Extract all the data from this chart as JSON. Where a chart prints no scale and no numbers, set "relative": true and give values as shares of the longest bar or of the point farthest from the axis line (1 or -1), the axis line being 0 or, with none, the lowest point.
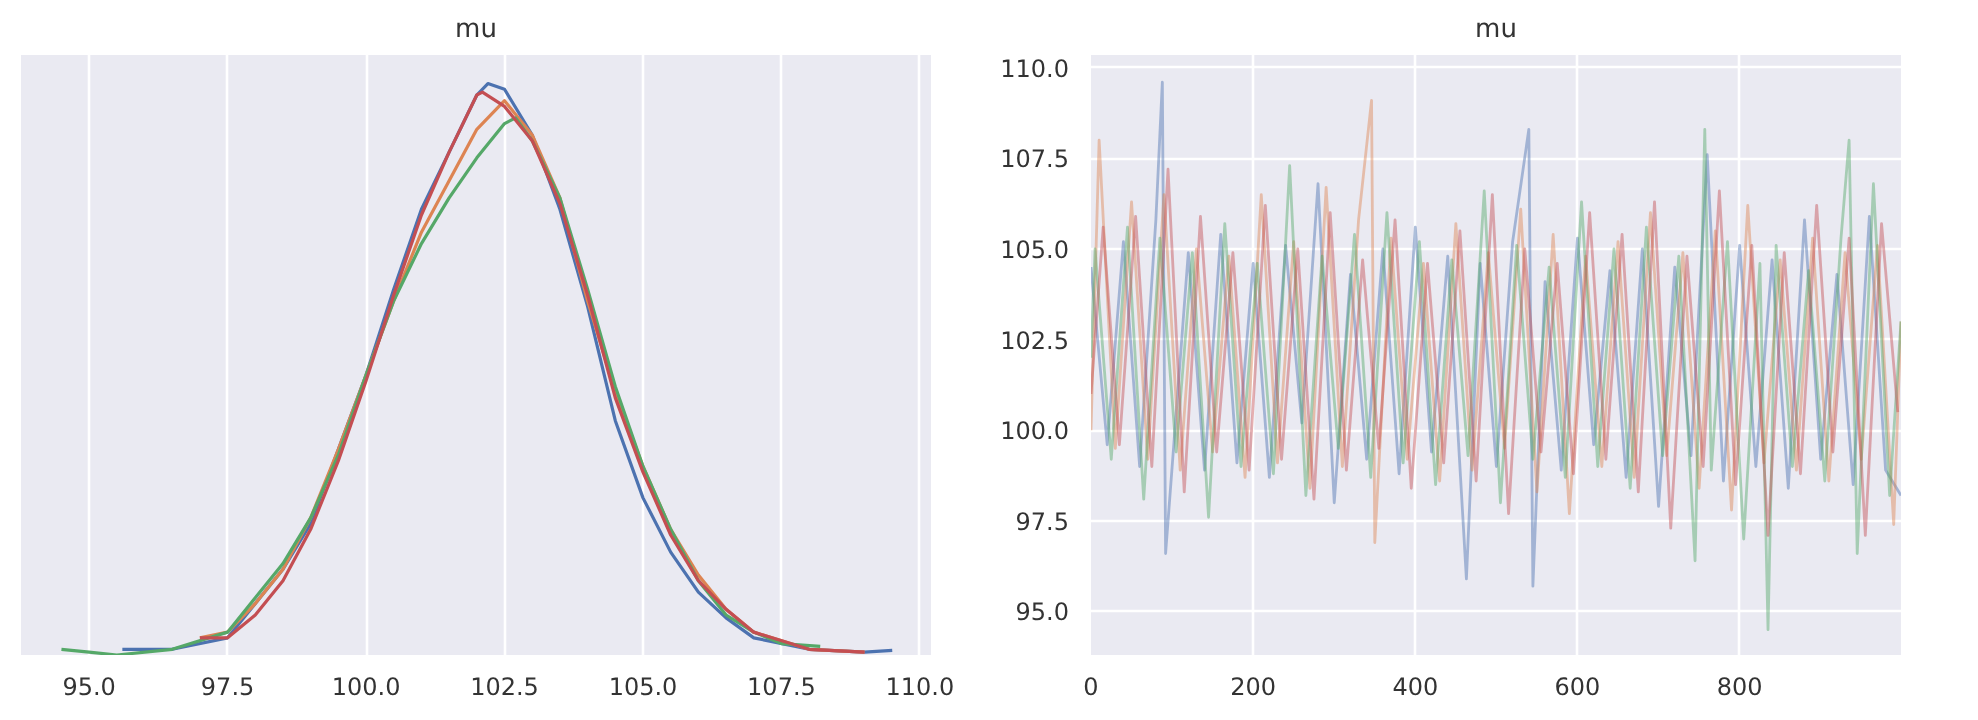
{
  "chart_data": [
    {
      "type": "line",
      "title": "mu",
      "relative": true,
      "xlim": [
        93.77,
        110.2
      ],
      "xticks": [
        {
          "value": 95,
          "label": "95.0"
        },
        {
          "value": 97.5,
          "label": "97.5"
        },
        {
          "value": 100,
          "label": "100.0"
        },
        {
          "value": 102.5,
          "label": "102.5"
        },
        {
          "value": 105,
          "label": "105.0"
        },
        {
          "value": 107.5,
          "label": "107.5"
        },
        {
          "value": 110,
          "label": "110.0"
        }
      ],
      "grid": "x",
      "tick_labels": "x",
      "line_style": "solid",
      "series": [
        {
          "color": "#4c72b0",
          "x": [
            95.6,
            96.5,
            97.5,
            98.5,
            99.0,
            99.5,
            100.0,
            100.5,
            101.0,
            101.5,
            102.0,
            102.2,
            102.5,
            103.0,
            103.5,
            104.0,
            104.5,
            105.0,
            105.5,
            106.0,
            106.5,
            107.0,
            108.0,
            109.0,
            109.5
          ],
          "values": [
            0.01,
            0.01,
            0.03,
            0.15,
            0.23,
            0.36,
            0.49,
            0.64,
            0.78,
            0.88,
            0.98,
            1.0,
            0.99,
            0.91,
            0.78,
            0.61,
            0.41,
            0.275,
            0.18,
            0.11,
            0.065,
            0.03,
            0.01,
            0.005,
            0.008
          ]
        },
        {
          "color": "#dd8452",
          "x": [
            97.0,
            97.5,
            98.0,
            98.5,
            99.0,
            99.5,
            100.0,
            100.5,
            101.0,
            101.5,
            102.0,
            102.5,
            103.0,
            103.5,
            104.0,
            104.5,
            105.0,
            105.5,
            106.0,
            106.5,
            107.0,
            108.0,
            109.0
          ],
          "values": [
            0.03,
            0.04,
            0.09,
            0.15,
            0.24,
            0.36,
            0.49,
            0.62,
            0.74,
            0.83,
            0.92,
            0.97,
            0.91,
            0.8,
            0.62,
            0.46,
            0.33,
            0.22,
            0.14,
            0.08,
            0.04,
            0.01,
            0.005
          ]
        },
        {
          "color": "#55a868",
          "x": [
            94.5,
            95.0,
            95.5,
            96.5,
            97.5,
            98.0,
            98.5,
            99.0,
            99.5,
            100.0,
            100.5,
            101.0,
            101.5,
            102.0,
            102.5,
            102.7,
            103.0,
            103.5,
            104.0,
            104.5,
            105.0,
            105.5,
            106.0,
            106.5,
            107.0,
            107.5,
            108.2
          ],
          "values": [
            0.01,
            0.005,
            0.0,
            0.01,
            0.04,
            0.1,
            0.16,
            0.24,
            0.35,
            0.49,
            0.62,
            0.72,
            0.8,
            0.87,
            0.93,
            0.94,
            0.9,
            0.8,
            0.64,
            0.47,
            0.33,
            0.22,
            0.13,
            0.07,
            0.04,
            0.02,
            0.015
          ]
        },
        {
          "color": "#c44e52",
          "x": [
            97.0,
            97.5,
            98.0,
            98.5,
            99.0,
            99.5,
            100.0,
            100.5,
            101.0,
            101.5,
            102.0,
            102.1,
            102.5,
            103.0,
            103.5,
            104.0,
            104.5,
            105.0,
            105.5,
            106.0,
            106.5,
            107.0,
            108.0,
            109.0
          ],
          "values": [
            0.03,
            0.03,
            0.07,
            0.13,
            0.22,
            0.34,
            0.48,
            0.63,
            0.77,
            0.88,
            0.98,
            0.985,
            0.96,
            0.9,
            0.79,
            0.63,
            0.45,
            0.32,
            0.21,
            0.13,
            0.08,
            0.04,
            0.01,
            0.005
          ]
        }
      ]
    },
    {
      "type": "line",
      "title": "mu",
      "xlim": [
        0,
        999
      ],
      "xticks": [
        0,
        200,
        400,
        600,
        800
      ],
      "ylim": [
        93.8,
        110.35
      ],
      "yticks": [
        {
          "value": 95,
          "label": "95.0"
        },
        {
          "value": 97.5,
          "label": "97.5"
        },
        {
          "value": 100,
          "label": "100.0"
        },
        {
          "value": 102.5,
          "label": "102.5"
        },
        {
          "value": 105,
          "label": "105.0"
        },
        {
          "value": 107.5,
          "label": "107.5"
        },
        {
          "value": 110,
          "label": "110.0"
        }
      ],
      "grid": true,
      "line_style": "solid",
      "series": [
        {
          "color": "#4c72b0",
          "x": [
            0,
            20,
            40,
            60,
            80,
            88,
            92,
            120,
            140,
            160,
            180,
            200,
            220,
            240,
            260,
            280,
            300,
            320,
            340,
            360,
            380,
            400,
            420,
            440,
            463,
            480,
            500,
            520,
            540,
            545,
            560,
            580,
            600,
            620,
            640,
            660,
            680,
            700,
            720,
            740,
            760,
            780,
            800,
            820,
            840,
            860,
            880,
            900,
            920,
            940,
            960,
            980,
            999
          ],
          "values": [
            104.5,
            99.6,
            105.2,
            99.0,
            105.8,
            109.6,
            96.6,
            104.9,
            98.9,
            105.4,
            99.1,
            104.6,
            98.7,
            105.1,
            100.2,
            106.8,
            98.0,
            104.3,
            99.2,
            105.0,
            98.8,
            105.6,
            99.4,
            104.8,
            95.9,
            104.6,
            99.0,
            105.2,
            108.3,
            95.7,
            104.1,
            98.9,
            105.3,
            99.6,
            104.4,
            98.7,
            105.0,
            97.9,
            104.5,
            99.3,
            107.6,
            98.6,
            105.1,
            99.0,
            104.7,
            98.4,
            105.8,
            99.2,
            104.3,
            98.5,
            105.9,
            98.9,
            98.2
          ]
        },
        {
          "color": "#dd8452",
          "x": [
            0,
            10,
            30,
            50,
            70,
            90,
            110,
            130,
            150,
            170,
            190,
            210,
            230,
            250,
            270,
            290,
            310,
            330,
            346,
            350,
            370,
            390,
            410,
            430,
            450,
            470,
            490,
            510,
            530,
            550,
            570,
            590,
            610,
            630,
            650,
            670,
            690,
            710,
            730,
            750,
            770,
            790,
            810,
            830,
            850,
            870,
            890,
            910,
            930,
            950,
            970,
            990,
            999
          ],
          "values": [
            100.0,
            108.0,
            99.5,
            106.3,
            99.2,
            106.5,
            98.9,
            105.0,
            99.4,
            104.8,
            98.7,
            106.5,
            99.1,
            105.2,
            98.4,
            106.7,
            99.0,
            105.8,
            109.1,
            96.9,
            105.3,
            99.2,
            104.6,
            98.6,
            105.7,
            98.9,
            104.9,
            99.5,
            106.1,
            98.3,
            105.4,
            97.7,
            104.8,
            99.0,
            105.2,
            98.7,
            106.0,
            99.3,
            104.9,
            98.4,
            105.5,
            97.8,
            106.2,
            99.1,
            104.7,
            98.9,
            105.3,
            98.6,
            104.9,
            99.2,
            105.1,
            97.4,
            103.0
          ]
        },
        {
          "color": "#55a868",
          "x": [
            0,
            5,
            25,
            45,
            65,
            85,
            105,
            125,
            145,
            165,
            185,
            205,
            225,
            245,
            265,
            285,
            305,
            325,
            345,
            365,
            385,
            405,
            425,
            445,
            465,
            485,
            505,
            525,
            545,
            565,
            585,
            605,
            625,
            645,
            665,
            685,
            705,
            725,
            745,
            757,
            765,
            785,
            805,
            825,
            835,
            845,
            865,
            885,
            905,
            925,
            935,
            945,
            965,
            985,
            999
          ],
          "values": [
            102.0,
            105.0,
            99.2,
            105.6,
            98.1,
            105.3,
            99.4,
            104.9,
            97.6,
            105.7,
            99.0,
            104.6,
            98.8,
            107.3,
            98.2,
            104.8,
            99.5,
            105.4,
            98.7,
            106.0,
            99.1,
            105.2,
            98.5,
            104.7,
            99.3,
            106.6,
            98.0,
            105.1,
            99.2,
            104.5,
            98.7,
            106.3,
            99.0,
            105.0,
            98.4,
            105.6,
            99.3,
            104.8,
            96.4,
            108.3,
            98.9,
            105.2,
            97.0,
            104.6,
            94.5,
            105.1,
            99.0,
            104.4,
            98.6,
            105.3,
            108.0,
            96.6,
            106.8,
            98.2,
            103.0
          ]
        },
        {
          "color": "#c44e52",
          "x": [
            0,
            15,
            35,
            55,
            75,
            95,
            115,
            135,
            155,
            175,
            195,
            215,
            235,
            255,
            275,
            295,
            315,
            335,
            355,
            375,
            395,
            415,
            435,
            455,
            475,
            495,
            515,
            535,
            555,
            575,
            595,
            615,
            635,
            655,
            675,
            695,
            715,
            735,
            755,
            775,
            795,
            815,
            835,
            855,
            875,
            895,
            915,
            935,
            955,
            975,
            995
          ],
          "values": [
            101.0,
            105.6,
            99.6,
            105.9,
            99.0,
            107.2,
            98.3,
            105.9,
            99.4,
            104.9,
            98.9,
            106.2,
            99.2,
            105.0,
            98.1,
            106.0,
            98.9,
            104.7,
            99.5,
            105.8,
            98.4,
            104.6,
            99.1,
            105.5,
            98.6,
            106.5,
            97.7,
            105.0,
            99.4,
            104.6,
            98.8,
            106.0,
            99.2,
            105.4,
            98.3,
            106.3,
            97.3,
            104.8,
            99.0,
            106.6,
            98.5,
            105.1,
            97.1,
            104.9,
            98.8,
            106.2,
            99.4,
            105.3,
            97.1,
            105.7,
            100.5
          ]
        }
      ]
    }
  ]
}
